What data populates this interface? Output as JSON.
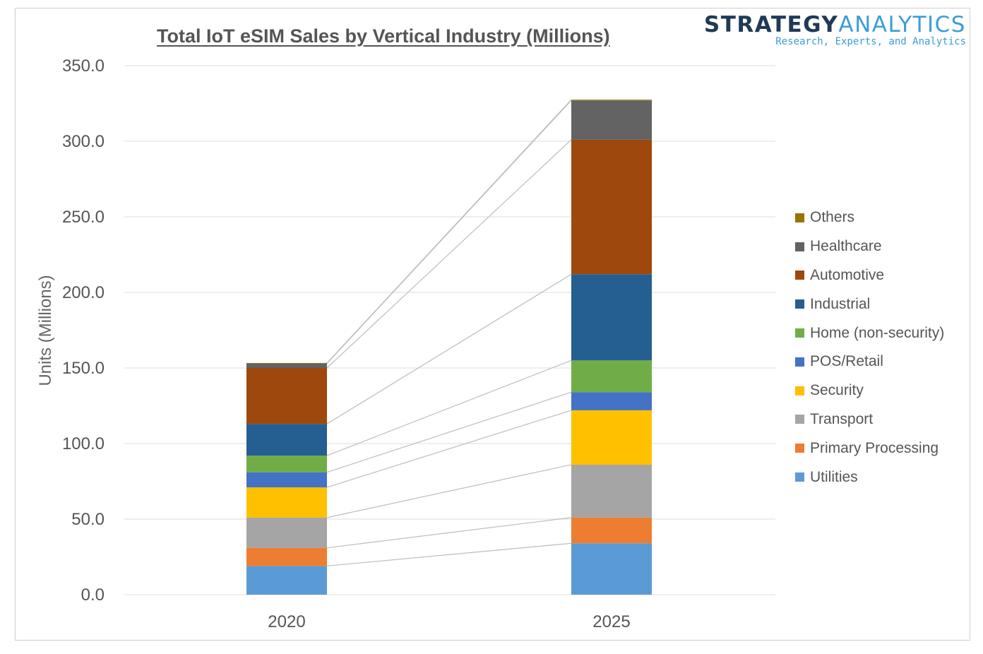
{
  "brand": {
    "name_part1": "STRATEGY",
    "name_part2": "ANALYTICS",
    "tagline": "Research, Experts, and Analytics"
  },
  "chart_data": {
    "type": "bar",
    "stacked": true,
    "title": "Total IoT eSIM Sales by Vertical Industry (Millions)",
    "xlabel": "",
    "ylabel": "Units (Millions)",
    "ylim": [
      0,
      350
    ],
    "yticks": [
      0,
      50,
      100,
      150,
      200,
      250,
      300,
      350
    ],
    "ytick_labels": [
      "0.0",
      "50.0",
      "100.0",
      "150.0",
      "200.0",
      "250.0",
      "300.0",
      "350.0"
    ],
    "grid": true,
    "legend_position": "right",
    "series_lines": true,
    "categories": [
      "2020",
      "2025"
    ],
    "series": [
      {
        "name": "Utilities",
        "color": "#5b9bd5",
        "values": [
          19,
          34
        ]
      },
      {
        "name": "Primary Processing",
        "color": "#ed7d31",
        "values": [
          12,
          17
        ]
      },
      {
        "name": "Transport",
        "color": "#a5a5a5",
        "values": [
          20,
          35
        ]
      },
      {
        "name": "Security",
        "color": "#ffc000",
        "values": [
          20,
          36
        ]
      },
      {
        "name": "POS/Retail",
        "color": "#4472c4",
        "values": [
          10,
          12
        ]
      },
      {
        "name": "Home (non-security)",
        "color": "#70ad47",
        "values": [
          11,
          21
        ]
      },
      {
        "name": "Industrial",
        "color": "#255e91",
        "values": [
          21,
          57
        ]
      },
      {
        "name": "Automotive",
        "color": "#9e480e",
        "values": [
          37,
          89
        ]
      },
      {
        "name": "Healthcare",
        "color": "#636363",
        "values": [
          3,
          26
        ]
      },
      {
        "name": "Others",
        "color": "#997300",
        "values": [
          0.3,
          0.5
        ]
      }
    ],
    "legend_order": [
      "Others",
      "Healthcare",
      "Automotive",
      "Industrial",
      "Home (non-security)",
      "POS/Retail",
      "Security",
      "Transport",
      "Primary Processing",
      "Utilities"
    ]
  }
}
